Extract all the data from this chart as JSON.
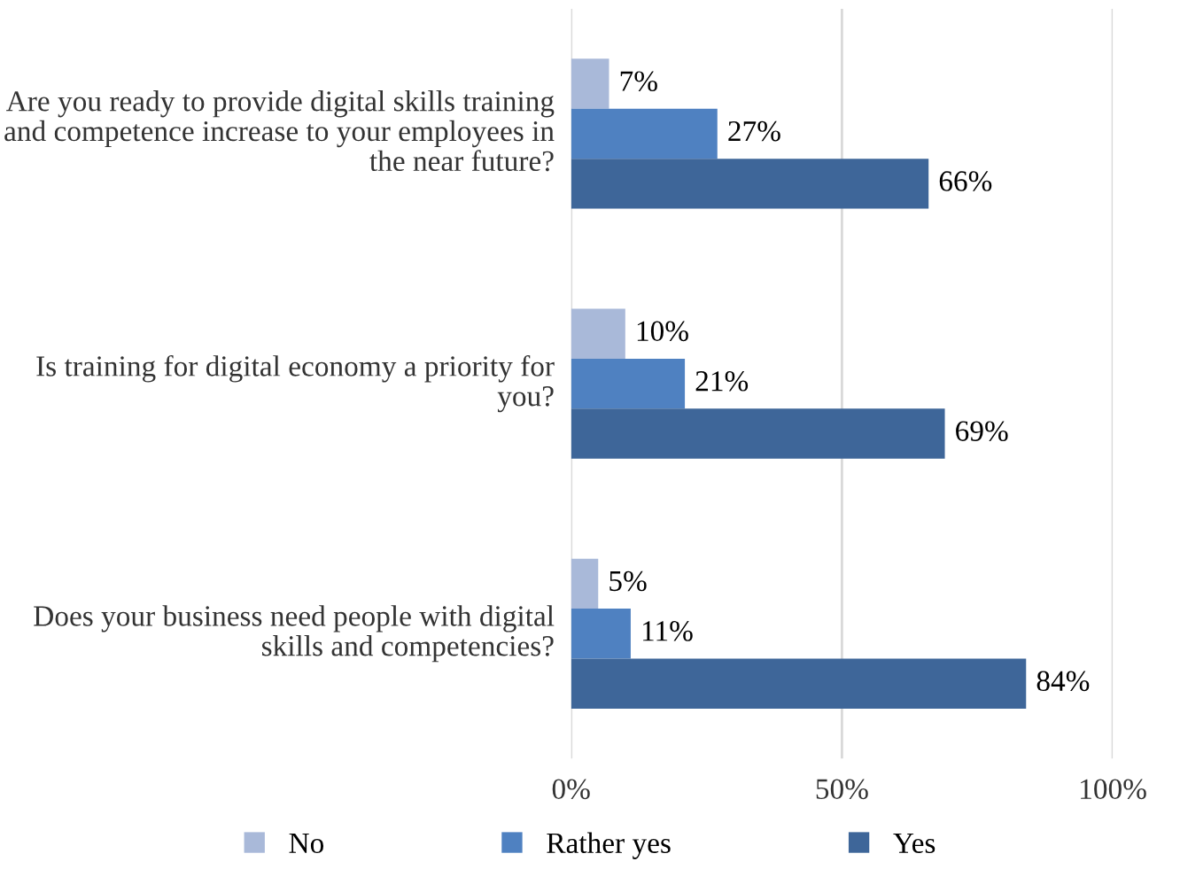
{
  "chart_data": {
    "type": "bar",
    "orientation": "horizontal",
    "categories": [
      "Are you ready to provide digital skills training and competence increase to your employees in the near future?",
      "Is training for digital economy a priority for you?",
      "Does your business need people with digital skills and competencies?"
    ],
    "series": [
      {
        "name": "No",
        "color": "#a9b9d9",
        "values": [
          7,
          10,
          5
        ],
        "value_labels": [
          "7%",
          "10%",
          "5%"
        ]
      },
      {
        "name": "Rather yes",
        "color": "#4f81c1",
        "values": [
          27,
          21,
          11
        ],
        "value_labels": [
          "27%",
          "21%",
          "11%"
        ]
      },
      {
        "name": "Yes",
        "color": "#3e6699",
        "values": [
          66,
          69,
          84
        ],
        "value_labels": [
          "66%",
          "69%",
          "84%"
        ]
      }
    ],
    "xlim": [
      0,
      100
    ],
    "xticks": [
      {
        "value": 0,
        "label": "0%"
      },
      {
        "value": 50,
        "label": "50%"
      },
      {
        "value": 100,
        "label": "100%"
      }
    ],
    "grid": "x",
    "legend": "bottom"
  }
}
